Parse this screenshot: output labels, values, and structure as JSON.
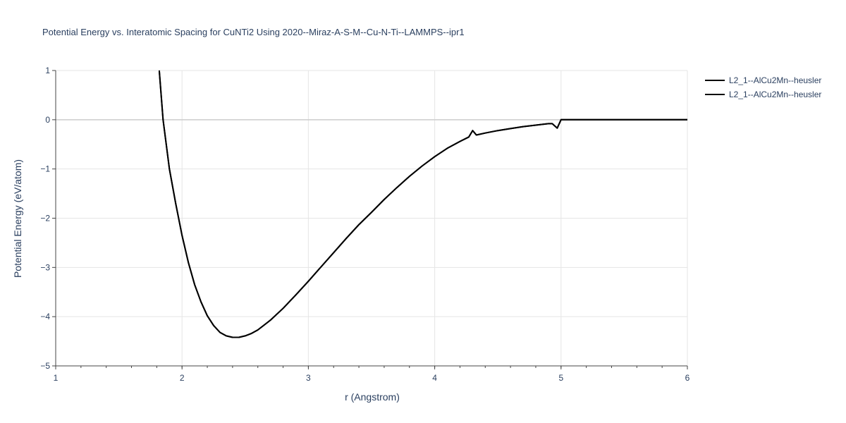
{
  "chart_data": {
    "type": "line",
    "title": "Potential Energy vs. Interatomic Spacing for CuNTi2 Using 2020--Miraz-A-S-M--Cu-N-Ti--LAMMPS--ipr1",
    "xlabel": "r (Angstrom)",
    "ylabel": "Potential Energy (eV/atom)",
    "xlim": [
      1,
      6
    ],
    "ylim": [
      -5,
      1
    ],
    "xticks": [
      "1",
      "2",
      "3",
      "4",
      "5",
      "6"
    ],
    "yticks": [
      "1",
      "0",
      "−1",
      "−2",
      "−3",
      "−4",
      "−5"
    ],
    "grid": true,
    "legend_position": "top-right",
    "series": [
      {
        "name": "L2_1--AlCu2Mn--heusler",
        "color": "#000000",
        "x": [
          1.82,
          1.85,
          1.9,
          1.95,
          2.0,
          2.05,
          2.1,
          2.15,
          2.2,
          2.25,
          2.3,
          2.35,
          2.4,
          2.45,
          2.5,
          2.55,
          2.6,
          2.7,
          2.8,
          2.9,
          3.0,
          3.1,
          3.2,
          3.3,
          3.4,
          3.5,
          3.6,
          3.7,
          3.8,
          3.9,
          4.0,
          4.1,
          4.2,
          4.27,
          4.3,
          4.33,
          4.4,
          4.5,
          4.6,
          4.7,
          4.8,
          4.9,
          4.93,
          4.97,
          5.0,
          5.1,
          5.5,
          6.0
        ],
        "y": [
          1.0,
          0.0,
          -1.0,
          -1.7,
          -2.35,
          -2.9,
          -3.35,
          -3.7,
          -3.98,
          -4.18,
          -4.32,
          -4.39,
          -4.42,
          -4.42,
          -4.39,
          -4.34,
          -4.27,
          -4.07,
          -3.83,
          -3.56,
          -3.28,
          -2.99,
          -2.7,
          -2.41,
          -2.13,
          -1.88,
          -1.62,
          -1.38,
          -1.15,
          -0.94,
          -0.75,
          -0.58,
          -0.44,
          -0.35,
          -0.22,
          -0.31,
          -0.27,
          -0.22,
          -0.18,
          -0.14,
          -0.11,
          -0.08,
          -0.08,
          -0.17,
          0.0,
          0.0,
          0.0,
          0.0
        ]
      },
      {
        "name": "L2_1--AlCu2Mn--heusler",
        "color": "#000000",
        "x": [
          1.82,
          1.85,
          1.9,
          1.95,
          2.0,
          2.05,
          2.1,
          2.15,
          2.2,
          2.25,
          2.3,
          2.35,
          2.4,
          2.45,
          2.5,
          2.55,
          2.6,
          2.7,
          2.8,
          2.9,
          3.0,
          3.1,
          3.2,
          3.3,
          3.4,
          3.5,
          3.6,
          3.7,
          3.8,
          3.9,
          4.0,
          4.1,
          4.2,
          4.27,
          4.3,
          4.33,
          4.4,
          4.5,
          4.6,
          4.7,
          4.8,
          4.9,
          4.93,
          4.97,
          5.0,
          5.1,
          5.5,
          6.0
        ],
        "y": [
          1.0,
          0.0,
          -1.0,
          -1.7,
          -2.35,
          -2.9,
          -3.35,
          -3.7,
          -3.98,
          -4.18,
          -4.32,
          -4.39,
          -4.42,
          -4.42,
          -4.39,
          -4.34,
          -4.27,
          -4.07,
          -3.83,
          -3.56,
          -3.28,
          -2.99,
          -2.7,
          -2.41,
          -2.13,
          -1.88,
          -1.62,
          -1.38,
          -1.15,
          -0.94,
          -0.75,
          -0.58,
          -0.44,
          -0.35,
          -0.22,
          -0.31,
          -0.27,
          -0.22,
          -0.18,
          -0.14,
          -0.11,
          -0.08,
          -0.08,
          -0.17,
          0.0,
          0.0,
          0.0,
          0.0
        ]
      }
    ]
  }
}
